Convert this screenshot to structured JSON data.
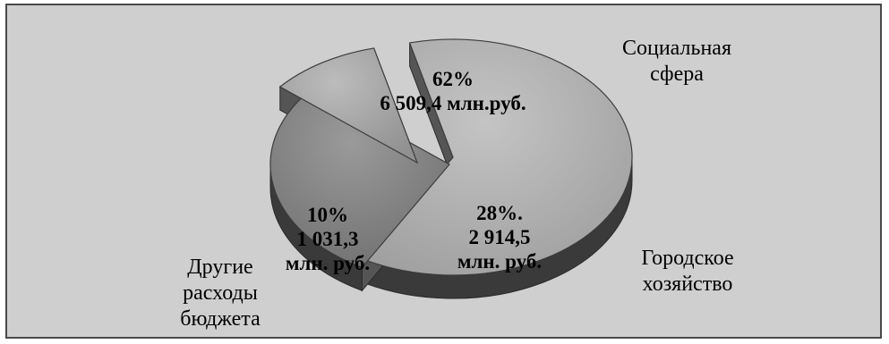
{
  "chart_data": {
    "type": "pie",
    "style": "3d-exploded",
    "slices": [
      {
        "category": [
          "Социальная",
          "сфера"
        ],
        "percent": 62,
        "percent_label": "62%",
        "value": 6509.4,
        "value_label": [
          "6 509,4 млн.руб."
        ],
        "unit": "млн. руб.",
        "color": "#b3b3b3"
      },
      {
        "category": [
          "Городское",
          "хозяйство"
        ],
        "percent": 28,
        "percent_label": "28%.",
        "value": 2914.5,
        "value_label": [
          "2 914,5",
          "млн. руб."
        ],
        "unit": "млн. руб.",
        "color": "#8c8c8c"
      },
      {
        "category": [
          "Другие",
          "расходы",
          "бюджета"
        ],
        "percent": 10,
        "percent_label": "10%",
        "value": 1031.3,
        "value_label": [
          "1 031,3",
          "млн. руб."
        ],
        "unit": "млн. руб.",
        "color": "#a6a6a6",
        "exploded": true
      }
    ],
    "colors": {
      "background": "#cfcfcf",
      "border": "#4a4a4a",
      "side_dark": "#3a3a3a"
    }
  }
}
